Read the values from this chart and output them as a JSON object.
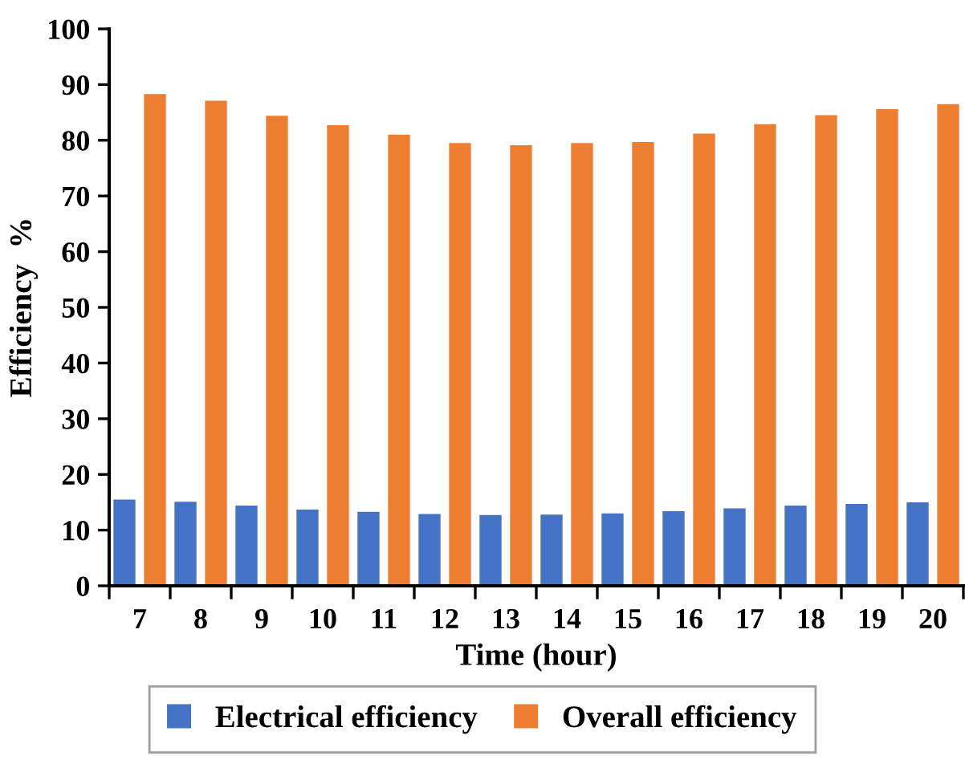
{
  "chart_data": {
    "type": "bar",
    "xlabel": "Time (hour)",
    "ylabel": "Efficiency  %",
    "categories": [
      "7",
      "8",
      "9",
      "10",
      "11",
      "12",
      "13",
      "14",
      "15",
      "16",
      "17",
      "18",
      "19",
      "20"
    ],
    "series": [
      {
        "name": "Electrical efficiency",
        "color": "#4472c4",
        "values": [
          15.5,
          15.1,
          14.4,
          13.7,
          13.3,
          12.9,
          12.7,
          12.8,
          13.0,
          13.4,
          13.9,
          14.4,
          14.7,
          15.0
        ]
      },
      {
        "name": "Overall efficiency",
        "color": "#ed7d31",
        "values": [
          88.3,
          87.1,
          84.4,
          82.7,
          81.0,
          79.5,
          79.1,
          79.5,
          79.7,
          81.2,
          82.9,
          84.5,
          85.6,
          86.5
        ]
      }
    ],
    "ylim": [
      0,
      100
    ],
    "yticks": [
      0,
      10,
      20,
      30,
      40,
      50,
      60,
      70,
      80,
      90,
      100
    ],
    "grid": false,
    "legend": "bottom"
  }
}
